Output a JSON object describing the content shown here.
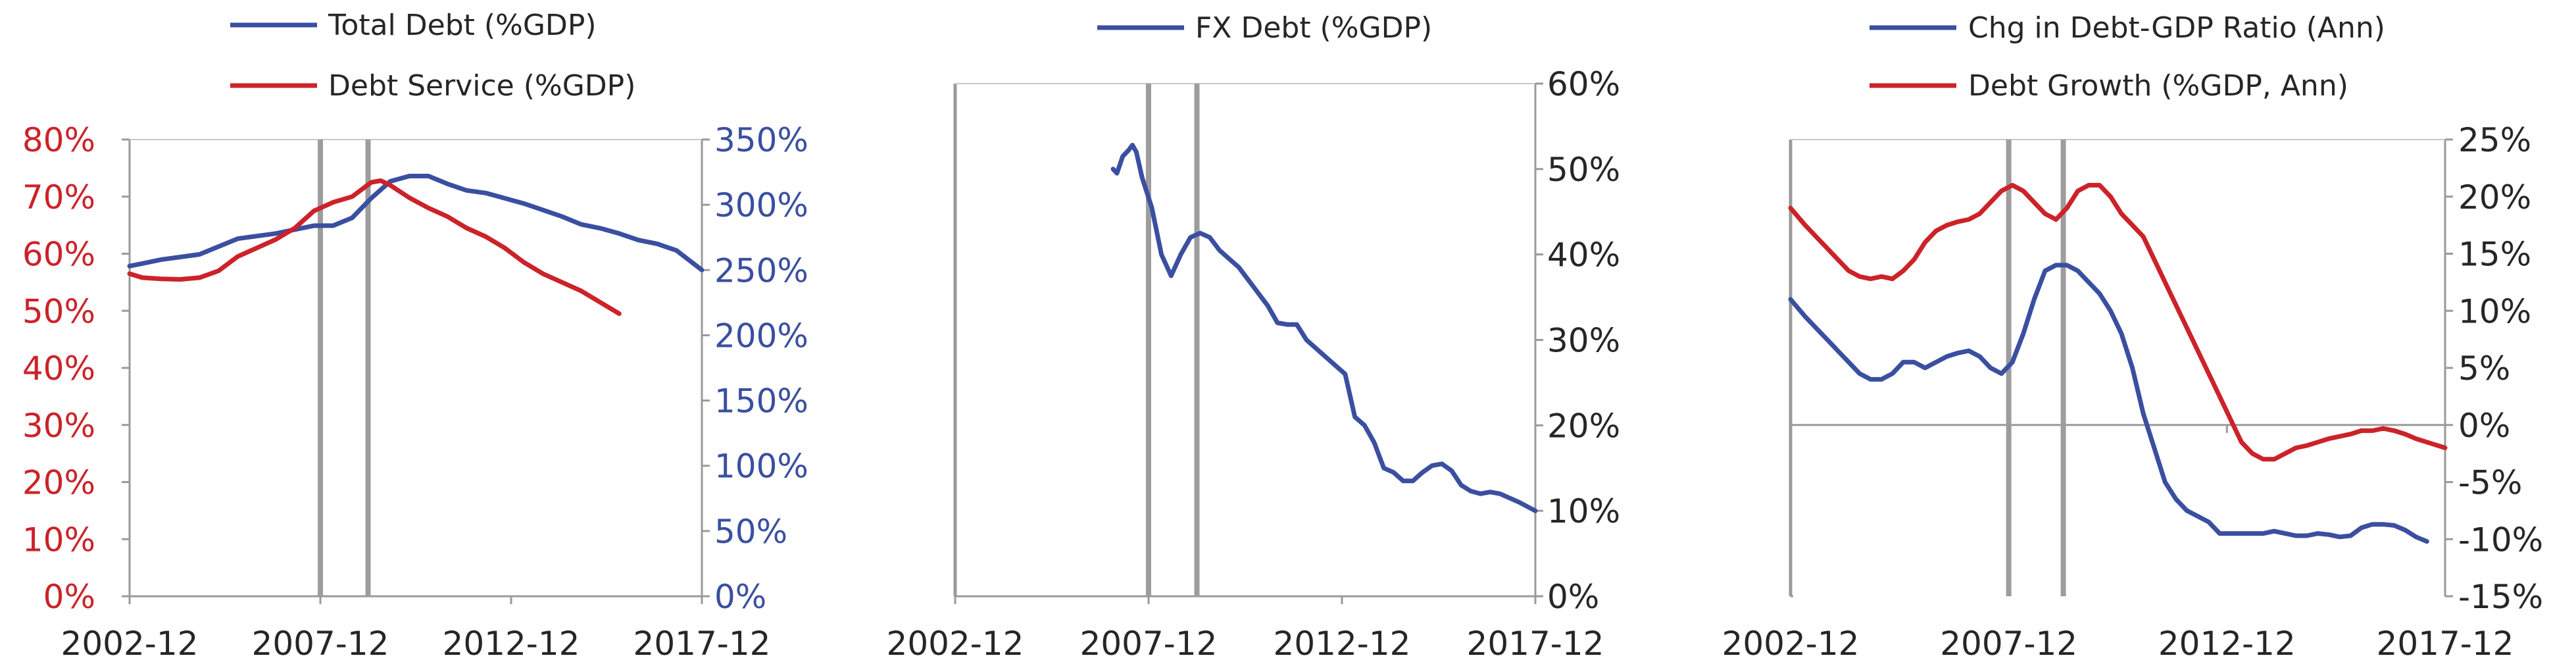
{
  "colors": {
    "blue": "#3a4fa0",
    "red": "#cc2229",
    "axis": "#9a9a9a",
    "text": "#262626",
    "marker": "#9d9d9d"
  },
  "chart_data": [
    {
      "type": "line",
      "title": "",
      "x_ticks": [
        "2002-12",
        "2007-12",
        "2012-12",
        "2017-12"
      ],
      "x_range": [
        2002.917,
        2017.917
      ],
      "markers": [
        2007.917,
        2009.167
      ],
      "left_axis": {
        "color": "red",
        "min": 0,
        "max": 80,
        "ticks": [
          "0%",
          "10%",
          "20%",
          "30%",
          "40%",
          "50%",
          "60%",
          "70%",
          "80%"
        ]
      },
      "right_axis": {
        "color": "blue",
        "min": 0,
        "max": 350,
        "ticks": [
          "0%",
          "50%",
          "100%",
          "150%",
          "200%",
          "250%",
          "300%",
          "350%"
        ]
      },
      "series": [
        {
          "name": "Total Debt (%GDP)",
          "axis": "right",
          "color": "blue",
          "x": [
            2002.917,
            2003.25,
            2003.75,
            2004.25,
            2004.75,
            2005.25,
            2005.75,
            2006.25,
            2006.75,
            2007.25,
            2007.75,
            2008.25,
            2008.75,
            2009.25,
            2009.75,
            2010.25,
            2010.75,
            2011.25,
            2011.75,
            2012.25,
            2012.75,
            2013.25,
            2013.75,
            2014.25,
            2014.75,
            2015.25,
            2015.75,
            2016.25,
            2016.75,
            2017.25,
            2017.917
          ],
          "y": [
            253,
            255,
            258,
            260,
            262,
            268,
            274,
            276,
            278,
            281,
            284,
            284,
            290,
            305,
            318,
            322,
            322,
            316,
            311,
            309,
            305,
            301,
            296,
            291,
            285,
            282,
            278,
            273,
            270,
            265,
            250
          ]
        },
        {
          "name": "Debt Service (%GDP)",
          "axis": "left",
          "color": "red",
          "x": [
            2002.917,
            2003.25,
            2003.75,
            2004.25,
            2004.75,
            2005.25,
            2005.75,
            2006.25,
            2006.75,
            2007.25,
            2007.75,
            2008.25,
            2008.75,
            2009.25,
            2009.5,
            2009.75,
            2010.25,
            2010.75,
            2011.25,
            2011.75,
            2012.25,
            2012.75,
            2013.25,
            2013.75,
            2014.25,
            2014.75,
            2015.25,
            2015.75
          ],
          "y": [
            56.5,
            55.8,
            55.6,
            55.5,
            55.8,
            57,
            59.5,
            61,
            62.5,
            64.5,
            67.5,
            69,
            70,
            72.5,
            72.8,
            72,
            69.8,
            68,
            66.5,
            64.5,
            63,
            61,
            58.5,
            56.5,
            55,
            53.5,
            51.5,
            49.5
          ]
        }
      ]
    },
    {
      "type": "line",
      "title": "",
      "x_ticks": [
        "2002-12",
        "2007-12",
        "2012-12",
        "2017-12"
      ],
      "x_range": [
        2002.917,
        2017.917
      ],
      "markers": [
        2007.917,
        2009.167
      ],
      "right_axis": {
        "color": "text",
        "min": 0,
        "max": 60,
        "ticks": [
          "0%",
          "10%",
          "20%",
          "30%",
          "40%",
          "50%",
          "60%"
        ]
      },
      "series": [
        {
          "name": "FX Debt (%GDP)",
          "axis": "right",
          "color": "blue",
          "x": [
            2007.0,
            2007.1,
            2007.25,
            2007.4,
            2007.5,
            2007.6,
            2007.75,
            2008.0,
            2008.25,
            2008.5,
            2008.75,
            2009.0,
            2009.25,
            2009.5,
            2009.75,
            2010.0,
            2010.25,
            2010.5,
            2010.75,
            2011.0,
            2011.25,
            2011.5,
            2011.75,
            2012.0,
            2012.25,
            2012.5,
            2012.75,
            2013.0,
            2013.25,
            2013.5,
            2013.75,
            2014.0,
            2014.25,
            2014.5,
            2014.75,
            2015.0,
            2015.25,
            2015.5,
            2015.75,
            2016.0,
            2016.25,
            2016.5,
            2016.75,
            2017.0,
            2017.25,
            2017.5,
            2017.917
          ],
          "y": [
            50,
            49.5,
            51.5,
            52.2,
            52.8,
            52,
            49,
            45.5,
            40,
            37.5,
            40,
            42,
            42.5,
            42,
            40.5,
            39.5,
            38.5,
            37,
            35.5,
            34,
            32,
            31.8,
            31.8,
            30,
            29,
            28,
            27,
            26,
            21,
            20,
            18,
            15,
            14.5,
            13.5,
            13.5,
            14.5,
            15.3,
            15.5,
            14.7,
            13,
            12.3,
            12,
            12.2,
            12,
            11.5,
            11,
            10
          ]
        }
      ]
    },
    {
      "type": "line",
      "title": "",
      "x_ticks": [
        "2002-12",
        "2007-12",
        "2012-12",
        "2017-12"
      ],
      "x_range": [
        2002.917,
        2017.917
      ],
      "markers": [
        2007.917,
        2009.167
      ],
      "right_axis": {
        "color": "text",
        "min": -15,
        "max": 25,
        "ticks": [
          "-15%",
          "-10%",
          "-5%",
          "0%",
          "5%",
          "10%",
          "15%",
          "20%",
          "25%"
        ]
      },
      "series": [
        {
          "name": "Chg in Debt-GDP Ratio (Ann)",
          "axis": "right",
          "color": "blue",
          "x": [
            2002.917,
            2003.25,
            2003.5,
            2003.75,
            2004.0,
            2004.25,
            2004.5,
            2004.75,
            2005.0,
            2005.25,
            2005.5,
            2005.75,
            2006.0,
            2006.25,
            2006.5,
            2006.75,
            2007.0,
            2007.25,
            2007.5,
            2007.75,
            2008.0,
            2008.25,
            2008.5,
            2008.75,
            2009.0,
            2009.25,
            2009.5,
            2009.75,
            2010.0,
            2010.25,
            2010.5,
            2010.75,
            2011.0,
            2011.25,
            2011.5,
            2011.75,
            2012.0,
            2012.25,
            2012.5,
            2012.75,
            2013.0,
            2013.25,
            2013.5,
            2013.75,
            2014.0,
            2014.25,
            2014.5,
            2014.75,
            2015.0,
            2015.25,
            2015.5,
            2015.75,
            2016.0,
            2016.25,
            2016.5,
            2016.75,
            2017.0,
            2017.25,
            2017.5
          ],
          "y": [
            11,
            9.5,
            8.5,
            7.5,
            6.5,
            5.5,
            4.5,
            4,
            4,
            4.5,
            5.5,
            5.5,
            5,
            5.5,
            6,
            6.3,
            6.5,
            6,
            5,
            4.5,
            5.5,
            8,
            11,
            13.5,
            14,
            14,
            13.5,
            12.5,
            11.5,
            10,
            8,
            5,
            1,
            -2,
            -5,
            -6.5,
            -7.5,
            -8,
            -8.5,
            -9.5,
            -9.5,
            -9.5,
            -9.5,
            -9.5,
            -9.3,
            -9.5,
            -9.7,
            -9.7,
            -9.5,
            -9.6,
            -9.8,
            -9.7,
            -9,
            -8.7,
            -8.7,
            -8.8,
            -9.2,
            -9.8,
            -10.2
          ]
        },
        {
          "name": "Debt Growth (%GDP, Ann)",
          "axis": "right",
          "color": "red",
          "x": [
            2002.917,
            2003.25,
            2003.5,
            2003.75,
            2004.0,
            2004.25,
            2004.5,
            2004.75,
            2005.0,
            2005.25,
            2005.5,
            2005.75,
            2006.0,
            2006.25,
            2006.5,
            2006.75,
            2007.0,
            2007.25,
            2007.5,
            2007.75,
            2008.0,
            2008.25,
            2008.5,
            2008.75,
            2009.0,
            2009.25,
            2009.5,
            2009.75,
            2010.0,
            2010.25,
            2010.5,
            2010.75,
            2011.0,
            2011.25,
            2011.5,
            2011.75,
            2012.0,
            2012.25,
            2012.5,
            2012.75,
            2013.0,
            2013.25,
            2013.5,
            2013.75,
            2014.0,
            2014.25,
            2014.5,
            2014.75,
            2015.0,
            2015.25,
            2015.5,
            2015.75,
            2016.0,
            2016.25,
            2016.5,
            2016.75,
            2017.0,
            2017.25,
            2017.5,
            2017.917
          ],
          "y": [
            19,
            17.5,
            16.5,
            15.5,
            14.5,
            13.5,
            13,
            12.8,
            13,
            12.8,
            13.5,
            14.5,
            16,
            17,
            17.5,
            17.8,
            18,
            18.5,
            19.5,
            20.5,
            21,
            20.5,
            19.5,
            18.5,
            18,
            19,
            20.5,
            21,
            21,
            20,
            18.5,
            17.5,
            16.5,
            14.5,
            12.5,
            10.5,
            8.5,
            6.5,
            4.5,
            2.5,
            0.5,
            -1.5,
            -2.5,
            -3,
            -3,
            -2.5,
            -2,
            -1.8,
            -1.5,
            -1.2,
            -1,
            -0.8,
            -0.5,
            -0.5,
            -0.3,
            -0.5,
            -0.8,
            -1.2,
            -1.5,
            -2
          ]
        }
      ]
    }
  ],
  "legends": [
    {
      "items": [
        {
          "label": "Total Debt (%GDP)",
          "color": "blue"
        },
        {
          "label": "Debt Service (%GDP)",
          "color": "red"
        }
      ]
    },
    {
      "items": [
        {
          "label": "FX Debt (%GDP)",
          "color": "blue"
        }
      ]
    },
    {
      "items": [
        {
          "label": "Chg in Debt-GDP Ratio (Ann)",
          "color": "blue"
        },
        {
          "label": "Debt Growth (%GDP, Ann)",
          "color": "red"
        }
      ]
    }
  ]
}
